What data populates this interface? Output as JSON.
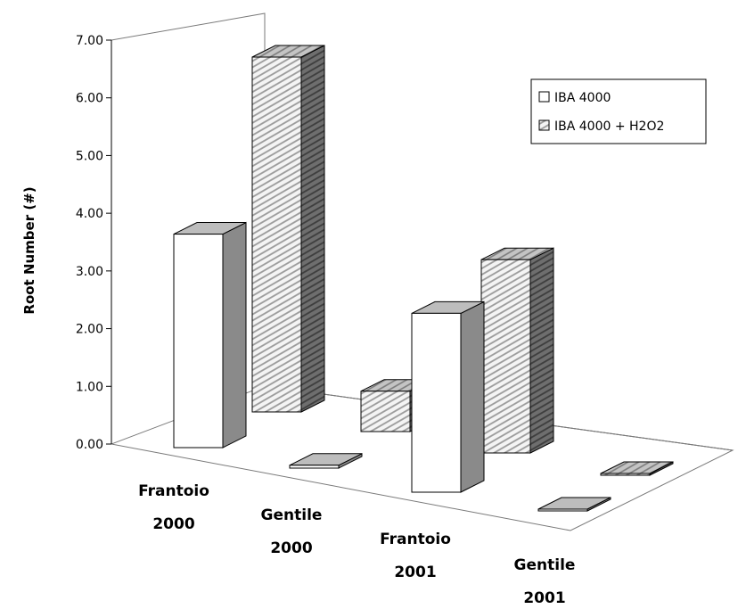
{
  "chart_data": {
    "type": "bar",
    "categories": [
      "Frantoio 2000",
      "Gentile 2000",
      "Frantoio 2001",
      "Gentile 2001"
    ],
    "category_lines": [
      [
        "Frantoio",
        "2000"
      ],
      [
        "Gentile",
        "2000"
      ],
      [
        "Frantoio",
        "2001"
      ],
      [
        "Gentile",
        "2001"
      ]
    ],
    "series": [
      {
        "name": "IBA 4000",
        "values": [
          3.7,
          0.05,
          3.1,
          0.02
        ],
        "pattern": "white"
      },
      {
        "name": "IBA 4000 + H2O2",
        "values": [
          6.15,
          0.7,
          3.35,
          0.02
        ],
        "pattern": "hatched"
      }
    ],
    "ylabel": "Root Number (#)",
    "ylim": [
      0,
      7
    ],
    "yticks": [
      "0.00",
      "1.00",
      "2.00",
      "3.00",
      "4.00",
      "5.00",
      "6.00",
      "7.00"
    ],
    "grid": false,
    "legend_position": "top-right",
    "colors": {
      "front_face": "#ffffff",
      "side_face": "#8c8c8c",
      "top_face": "#bdbdbd",
      "hatch": "#9a9a9a",
      "hatch_bg": "#f2f2f2"
    }
  }
}
